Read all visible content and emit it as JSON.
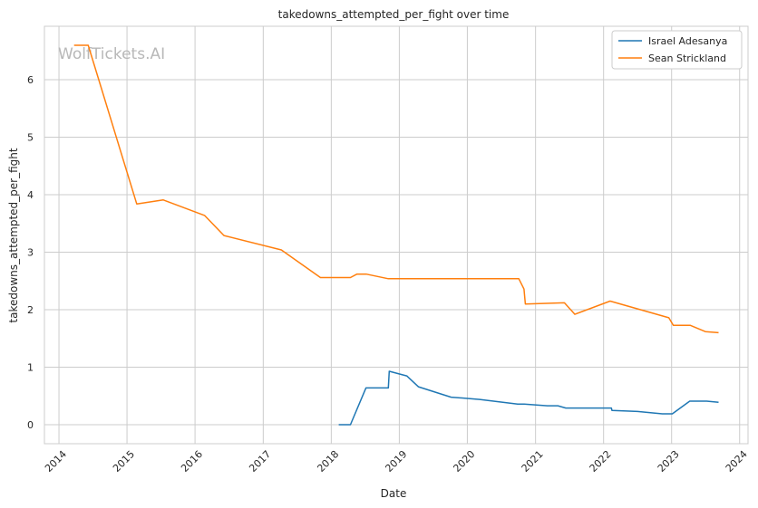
{
  "watermark": "WolfTickets.AI",
  "chart_data": {
    "type": "line",
    "title": "takedowns_attempted_per_fight over time",
    "xlabel": "Date",
    "ylabel": "takedowns_attempted_per_fight",
    "xlim": [
      "2013-10-15",
      "2024-02-15"
    ],
    "ylim": [
      -0.33,
      6.93
    ],
    "x_ticks": [
      "2014-01-01",
      "2015-01-01",
      "2016-01-01",
      "2017-01-01",
      "2018-01-01",
      "2019-01-01",
      "2020-01-01",
      "2021-01-01",
      "2022-01-01",
      "2023-01-01",
      "2024-01-01"
    ],
    "x_tick_labels": [
      "2014",
      "2015",
      "2016",
      "2017",
      "2018",
      "2019",
      "2020",
      "2021",
      "2022",
      "2023",
      "2024"
    ],
    "y_ticks": [
      0,
      1,
      2,
      3,
      4,
      5,
      6
    ],
    "y_tick_labels": [
      "0",
      "1",
      "2",
      "3",
      "4",
      "5",
      "6"
    ],
    "grid": true,
    "legend_position": "top-right",
    "series": [
      {
        "name": "Israel Adesanya",
        "color": "#1f77b4",
        "points": [
          [
            "2018-02-10",
            0.0
          ],
          [
            "2018-04-14",
            0.0
          ],
          [
            "2018-07-06",
            0.64
          ],
          [
            "2018-11-03",
            0.64
          ],
          [
            "2018-11-08",
            0.93
          ],
          [
            "2019-02-10",
            0.85
          ],
          [
            "2019-04-13",
            0.66
          ],
          [
            "2019-10-06",
            0.48
          ],
          [
            "2020-03-07",
            0.44
          ],
          [
            "2020-09-27",
            0.36
          ],
          [
            "2020-11-01",
            0.36
          ],
          [
            "2021-03-06",
            0.33
          ],
          [
            "2021-05-01",
            0.33
          ],
          [
            "2021-06-12",
            0.29
          ],
          [
            "2022-02-12",
            0.29
          ],
          [
            "2022-02-15",
            0.25
          ],
          [
            "2022-07-02",
            0.23
          ],
          [
            "2022-11-12",
            0.19
          ],
          [
            "2023-01-05",
            0.19
          ],
          [
            "2023-04-08",
            0.41
          ],
          [
            "2023-07-08",
            0.41
          ],
          [
            "2023-09-10",
            0.39
          ]
        ]
      },
      {
        "name": "Sean Strickland",
        "color": "#ff7f0e",
        "points": [
          [
            "2014-03-23",
            6.6
          ],
          [
            "2014-06-07",
            6.6
          ],
          [
            "2015-02-22",
            3.84
          ],
          [
            "2015-07-15",
            3.91
          ],
          [
            "2016-02-21",
            3.64
          ],
          [
            "2016-06-04",
            3.29
          ],
          [
            "2017-04-08",
            3.04
          ],
          [
            "2017-11-04",
            2.56
          ],
          [
            "2018-04-14",
            2.56
          ],
          [
            "2018-05-19",
            2.62
          ],
          [
            "2018-07-07",
            2.62
          ],
          [
            "2018-11-03",
            2.54
          ],
          [
            "2020-10-03",
            2.54
          ],
          [
            "2020-10-31",
            2.36
          ],
          [
            "2020-11-07",
            2.1
          ],
          [
            "2021-06-05",
            2.12
          ],
          [
            "2021-07-31",
            1.92
          ],
          [
            "2022-02-05",
            2.15
          ],
          [
            "2022-12-17",
            1.86
          ],
          [
            "2023-01-10",
            1.73
          ],
          [
            "2023-04-10",
            1.73
          ],
          [
            "2023-07-01",
            1.62
          ],
          [
            "2023-09-10",
            1.6
          ]
        ]
      }
    ]
  }
}
